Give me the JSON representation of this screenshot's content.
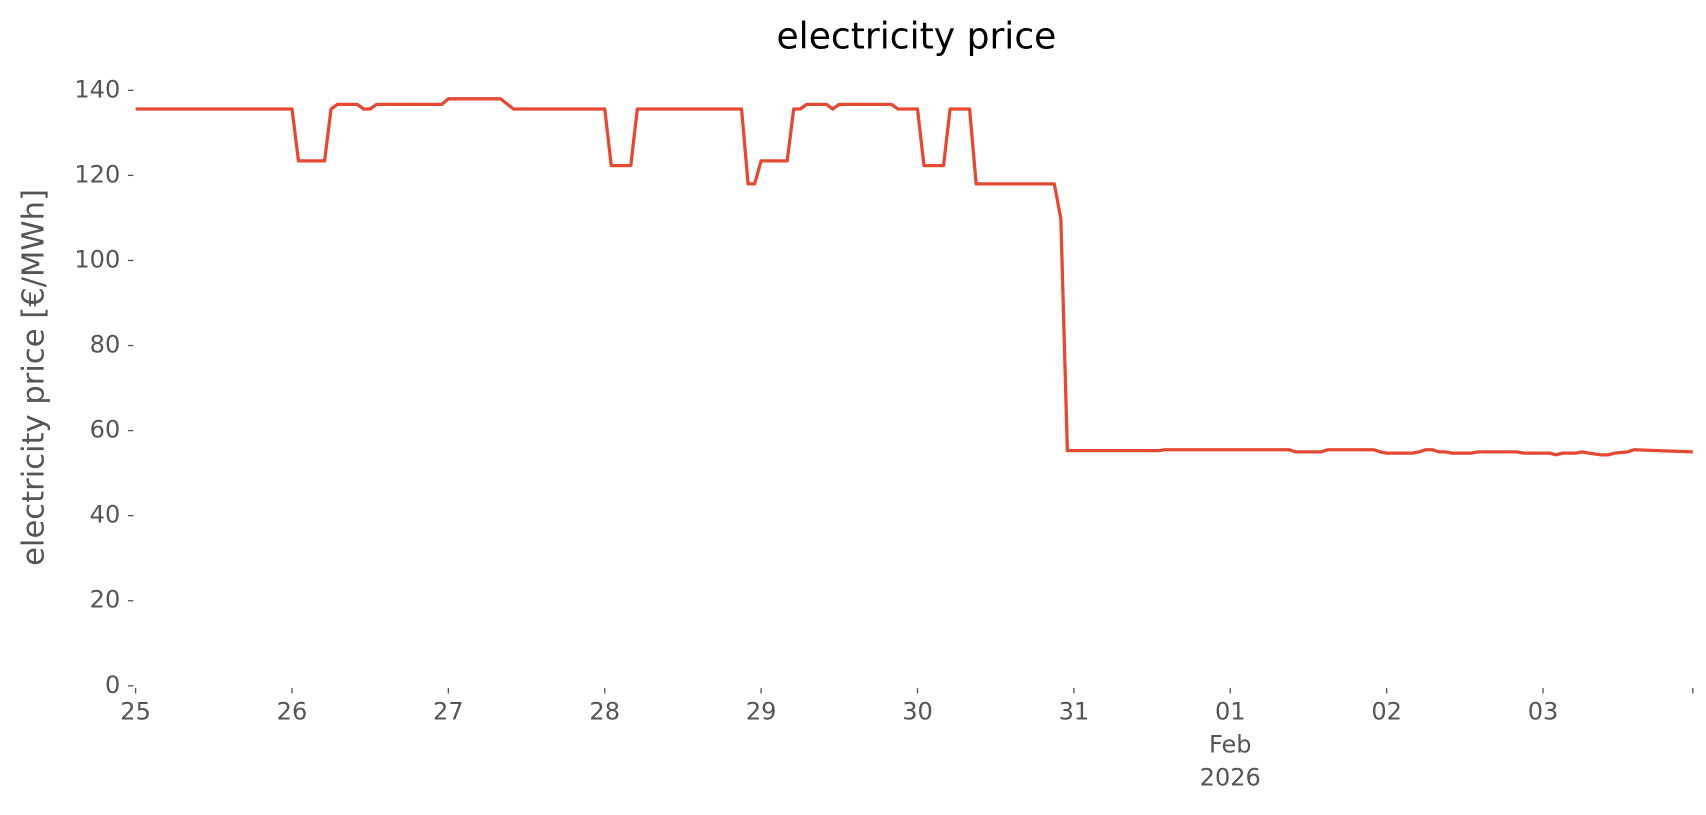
{
  "chart_data": {
    "type": "line",
    "title": "electricity price",
    "y_label": "electricity price [€/MWh]",
    "series": [
      {
        "name": "electricity price",
        "color": "#e24a33",
        "x": [
          "2026-01-25 00:00",
          "2026-01-26 00:00",
          "2026-01-26 01:00",
          "2026-01-26 05:00",
          "2026-01-26 06:00",
          "2026-01-26 07:00",
          "2026-01-26 10:00",
          "2026-01-26 11:00",
          "2026-01-26 12:00",
          "2026-01-26 13:00",
          "2026-01-26 23:00",
          "2026-01-27 00:00",
          "2026-01-27 08:00",
          "2026-01-27 10:00",
          "2026-01-28 00:00",
          "2026-01-28 01:00",
          "2026-01-28 04:00",
          "2026-01-28 05:00",
          "2026-01-28 21:00",
          "2026-01-28 22:00",
          "2026-01-28 23:00",
          "2026-01-29 00:00",
          "2026-01-29 04:00",
          "2026-01-29 05:00",
          "2026-01-29 06:00",
          "2026-01-29 07:00",
          "2026-01-29 10:00",
          "2026-01-29 11:00",
          "2026-01-29 12:00",
          "2026-01-29 20:00",
          "2026-01-29 21:00",
          "2026-01-30 00:00",
          "2026-01-30 01:00",
          "2026-01-30 04:00",
          "2026-01-30 05:00",
          "2026-01-30 08:00",
          "2026-01-30 09:00",
          "2026-01-30 21:00",
          "2026-01-30 22:00",
          "2026-01-30 23:00",
          "2026-01-31 13:00",
          "2026-01-31 14:00",
          "2026-02-01 09:00",
          "2026-02-01 10:00",
          "2026-02-01 14:00",
          "2026-02-01 15:00",
          "2026-02-01 22:00",
          "2026-02-01 23:00",
          "2026-02-02 00:00",
          "2026-02-02 04:00",
          "2026-02-02 05:00",
          "2026-02-02 06:00",
          "2026-02-02 07:00",
          "2026-02-02 08:00",
          "2026-02-02 09:00",
          "2026-02-02 10:00",
          "2026-02-02 13:00",
          "2026-02-02 14:00",
          "2026-02-02 20:00",
          "2026-02-02 21:00",
          "2026-02-03 01:00",
          "2026-02-03 02:00",
          "2026-02-03 03:00",
          "2026-02-03 05:00",
          "2026-02-03 06:00",
          "2026-02-03 07:00",
          "2026-02-03 09:00",
          "2026-02-03 10:00",
          "2026-02-03 11:00",
          "2026-02-03 13:00",
          "2026-02-03 14:00",
          "2026-02-03 23:00"
        ],
        "values": [
          135.6,
          135.6,
          123.4,
          123.4,
          135.6,
          136.7,
          136.7,
          135.6,
          135.6,
          136.7,
          136.7,
          138,
          138,
          135.6,
          135.6,
          122.3,
          122.3,
          135.6,
          135.6,
          118,
          118,
          123.4,
          123.4,
          135.6,
          135.6,
          136.7,
          136.7,
          135.6,
          136.7,
          136.7,
          135.6,
          135.6,
          122.3,
          122.3,
          135.6,
          135.6,
          118,
          118,
          109.8,
          55.3,
          55.3,
          55.5,
          55.5,
          55,
          55,
          55.5,
          55.5,
          55,
          54.7,
          54.7,
          55,
          55.5,
          55.5,
          55,
          55,
          54.7,
          54.7,
          55,
          55,
          54.7,
          54.7,
          54.3,
          54.7,
          54.7,
          55,
          54.7,
          54.3,
          54.3,
          54.7,
          55,
          55.5,
          55
        ]
      }
    ],
    "xlim": [
      "2026-01-25 00:00",
      "2026-02-03 23:00"
    ],
    "xticks": [
      {
        "value": "2026-01-25 00:00",
        "label": "25"
      },
      {
        "value": "2026-01-26 00:00",
        "label": "26"
      },
      {
        "value": "2026-01-27 00:00",
        "label": "27"
      },
      {
        "value": "2026-01-28 00:00",
        "label": "28"
      },
      {
        "value": "2026-01-29 00:00",
        "label": "29"
      },
      {
        "value": "2026-01-30 00:00",
        "label": "30"
      },
      {
        "value": "2026-01-31 00:00",
        "label": "31"
      },
      {
        "value": "2026-02-01 00:00",
        "label": "01\nFeb\n2026"
      },
      {
        "value": "2026-02-02 00:00",
        "label": "02"
      },
      {
        "value": "2026-02-03 00:00",
        "label": "03"
      }
    ],
    "ylim": [
      0,
      145
    ],
    "yticks": [
      0,
      20,
      40,
      60,
      80,
      100,
      120,
      140
    ],
    "grid": false
  }
}
